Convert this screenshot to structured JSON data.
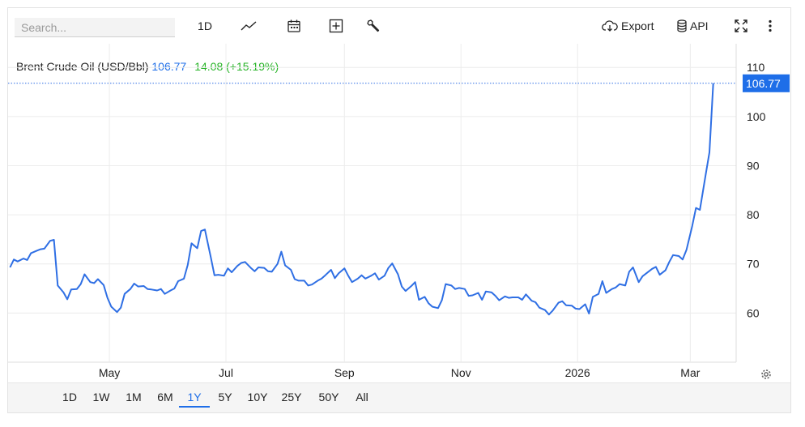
{
  "toolbar": {
    "search_placeholder": "Search...",
    "interval_label": "1D",
    "export_label": "Export",
    "api_label": "API",
    "icons": [
      "line-chart-icon",
      "calendar-icon",
      "add-indicator-icon",
      "wrench-icon",
      "cloud-download-icon",
      "database-icon",
      "fullscreen-icon",
      "more-vertical-icon"
    ]
  },
  "info": {
    "title": "Brent Crude Oil (USD/Bbl)",
    "last": "106.77",
    "change": "14.08 (+15.19%)"
  },
  "ranges": [
    "1D",
    "1W",
    "1M",
    "6M",
    "1Y",
    "5Y",
    "10Y",
    "25Y",
    "50Y",
    "All"
  ],
  "active_range": "1Y",
  "colors": {
    "line": "#2f6fe4",
    "positive": "#28b428",
    "accent": "#1e6ee8",
    "grid": "#ececec"
  },
  "chart_data": {
    "type": "line",
    "title": "Brent Crude Oil (USD/Bbl)",
    "xlabel": "",
    "ylabel": "",
    "ylim": [
      50,
      113.5
    ],
    "yticks": [
      60,
      70,
      80,
      90,
      100,
      110
    ],
    "xticks": [
      {
        "label": "May",
        "x": "2025-05-01"
      },
      {
        "label": "Jul",
        "x": "2025-07-01"
      },
      {
        "label": "Sep",
        "x": "2025-09-01"
      },
      {
        "label": "Nov",
        "x": "2025-11-01"
      },
      {
        "label": "2026",
        "x": "2026-01-01"
      },
      {
        "label": "Mar",
        "x": "2026-03-01"
      }
    ],
    "xrange": [
      "2025-03-09",
      "2026-03-25"
    ],
    "last_value_label": "106.77",
    "last_value": 106.77,
    "grid": true,
    "series": [
      {
        "name": "",
        "points": [
          [
            "2025-03-10",
            69.3
          ],
          [
            "2025-03-12",
            70.9
          ],
          [
            "2025-03-14",
            70.5
          ],
          [
            "2025-03-17",
            71.1
          ],
          [
            "2025-03-19",
            70.8
          ],
          [
            "2025-03-21",
            72.2
          ],
          [
            "2025-03-24",
            72.7
          ],
          [
            "2025-03-26",
            73.0
          ],
          [
            "2025-03-28",
            73.1
          ],
          [
            "2025-03-31",
            74.7
          ],
          [
            "2025-04-02",
            74.9
          ],
          [
            "2025-04-04",
            65.6
          ],
          [
            "2025-04-07",
            64.2
          ],
          [
            "2025-04-09",
            62.8
          ],
          [
            "2025-04-11",
            64.8
          ],
          [
            "2025-04-14",
            64.9
          ],
          [
            "2025-04-16",
            65.9
          ],
          [
            "2025-04-18",
            67.9
          ],
          [
            "2025-04-21",
            66.3
          ],
          [
            "2025-04-23",
            66.1
          ],
          [
            "2025-04-25",
            66.9
          ],
          [
            "2025-04-28",
            65.7
          ],
          [
            "2025-04-30",
            63.1
          ],
          [
            "2025-05-02",
            61.3
          ],
          [
            "2025-05-05",
            60.2
          ],
          [
            "2025-05-07",
            61.1
          ],
          [
            "2025-05-09",
            63.9
          ],
          [
            "2025-05-12",
            64.9
          ],
          [
            "2025-05-14",
            66.0
          ],
          [
            "2025-05-16",
            65.4
          ],
          [
            "2025-05-19",
            65.5
          ],
          [
            "2025-05-21",
            64.9
          ],
          [
            "2025-05-23",
            64.8
          ],
          [
            "2025-05-26",
            64.6
          ],
          [
            "2025-05-28",
            64.9
          ],
          [
            "2025-05-30",
            63.9
          ],
          [
            "2025-06-02",
            64.6
          ],
          [
            "2025-06-04",
            65.0
          ],
          [
            "2025-06-06",
            66.5
          ],
          [
            "2025-06-09",
            67.0
          ],
          [
            "2025-06-11",
            69.8
          ],
          [
            "2025-06-13",
            74.2
          ],
          [
            "2025-06-16",
            73.2
          ],
          [
            "2025-06-18",
            76.7
          ],
          [
            "2025-06-20",
            77.0
          ],
          [
            "2025-06-23",
            71.5
          ],
          [
            "2025-06-25",
            67.7
          ],
          [
            "2025-06-27",
            67.8
          ],
          [
            "2025-06-30",
            67.6
          ],
          [
            "2025-07-02",
            69.1
          ],
          [
            "2025-07-04",
            68.3
          ],
          [
            "2025-07-07",
            69.6
          ],
          [
            "2025-07-09",
            70.2
          ],
          [
            "2025-07-11",
            70.4
          ],
          [
            "2025-07-14",
            69.2
          ],
          [
            "2025-07-16",
            68.5
          ],
          [
            "2025-07-18",
            69.3
          ],
          [
            "2025-07-21",
            69.2
          ],
          [
            "2025-07-23",
            68.5
          ],
          [
            "2025-07-25",
            68.4
          ],
          [
            "2025-07-28",
            70.0
          ],
          [
            "2025-07-30",
            72.5
          ],
          [
            "2025-08-01",
            69.7
          ],
          [
            "2025-08-04",
            68.8
          ],
          [
            "2025-08-06",
            66.9
          ],
          [
            "2025-08-08",
            66.6
          ],
          [
            "2025-08-11",
            66.6
          ],
          [
            "2025-08-13",
            65.6
          ],
          [
            "2025-08-15",
            65.8
          ],
          [
            "2025-08-18",
            66.6
          ],
          [
            "2025-08-20",
            67.0
          ],
          [
            "2025-08-22",
            67.7
          ],
          [
            "2025-08-25",
            68.8
          ],
          [
            "2025-08-27",
            67.1
          ],
          [
            "2025-08-29",
            68.1
          ],
          [
            "2025-09-01",
            69.1
          ],
          [
            "2025-09-03",
            67.6
          ],
          [
            "2025-09-05",
            66.3
          ],
          [
            "2025-09-08",
            67.0
          ],
          [
            "2025-09-10",
            67.7
          ],
          [
            "2025-09-12",
            67.0
          ],
          [
            "2025-09-15",
            67.6
          ],
          [
            "2025-09-17",
            68.1
          ],
          [
            "2025-09-19",
            66.8
          ],
          [
            "2025-09-22",
            67.6
          ],
          [
            "2025-09-24",
            69.2
          ],
          [
            "2025-09-26",
            70.1
          ],
          [
            "2025-09-29",
            67.9
          ],
          [
            "2025-10-01",
            65.4
          ],
          [
            "2025-10-03",
            64.5
          ],
          [
            "2025-10-06",
            65.5
          ],
          [
            "2025-10-08",
            66.3
          ],
          [
            "2025-10-10",
            62.7
          ],
          [
            "2025-10-13",
            63.3
          ],
          [
            "2025-10-15",
            62.0
          ],
          [
            "2025-10-17",
            61.3
          ],
          [
            "2025-10-20",
            61.0
          ],
          [
            "2025-10-22",
            62.6
          ],
          [
            "2025-10-24",
            65.9
          ],
          [
            "2025-10-27",
            65.6
          ],
          [
            "2025-10-29",
            64.9
          ],
          [
            "2025-10-31",
            65.1
          ],
          [
            "2025-11-03",
            64.9
          ],
          [
            "2025-11-05",
            63.5
          ],
          [
            "2025-11-07",
            63.6
          ],
          [
            "2025-11-10",
            64.1
          ],
          [
            "2025-11-12",
            62.7
          ],
          [
            "2025-11-14",
            64.4
          ],
          [
            "2025-11-17",
            64.2
          ],
          [
            "2025-11-19",
            63.5
          ],
          [
            "2025-11-21",
            62.6
          ],
          [
            "2025-11-24",
            63.4
          ],
          [
            "2025-11-26",
            63.1
          ],
          [
            "2025-11-28",
            63.2
          ],
          [
            "2025-12-01",
            63.2
          ],
          [
            "2025-12-03",
            62.7
          ],
          [
            "2025-12-05",
            63.8
          ],
          [
            "2025-12-08",
            62.5
          ],
          [
            "2025-12-10",
            62.2
          ],
          [
            "2025-12-12",
            61.1
          ],
          [
            "2025-12-15",
            60.6
          ],
          [
            "2025-12-17",
            59.7
          ],
          [
            "2025-12-19",
            60.5
          ],
          [
            "2025-12-22",
            62.1
          ],
          [
            "2025-12-24",
            62.4
          ],
          [
            "2025-12-26",
            61.6
          ],
          [
            "2025-12-29",
            61.5
          ],
          [
            "2025-12-31",
            60.9
          ],
          [
            "2026-01-02",
            60.8
          ],
          [
            "2026-01-05",
            61.8
          ],
          [
            "2026-01-07",
            59.9
          ],
          [
            "2026-01-09",
            63.3
          ],
          [
            "2026-01-12",
            63.9
          ],
          [
            "2026-01-14",
            66.5
          ],
          [
            "2026-01-16",
            64.1
          ],
          [
            "2026-01-19",
            64.9
          ],
          [
            "2026-01-21",
            65.2
          ],
          [
            "2026-01-23",
            65.9
          ],
          [
            "2026-01-26",
            65.6
          ],
          [
            "2026-01-28",
            68.4
          ],
          [
            "2026-01-30",
            69.3
          ],
          [
            "2026-02-02",
            66.3
          ],
          [
            "2026-02-04",
            67.5
          ],
          [
            "2026-02-06",
            68.1
          ],
          [
            "2026-02-09",
            69.0
          ],
          [
            "2026-02-11",
            69.4
          ],
          [
            "2026-02-13",
            67.8
          ],
          [
            "2026-02-16",
            68.7
          ],
          [
            "2026-02-18",
            70.4
          ],
          [
            "2026-02-20",
            71.8
          ],
          [
            "2026-02-23",
            71.6
          ],
          [
            "2026-02-25",
            70.9
          ],
          [
            "2026-02-27",
            72.9
          ],
          [
            "2026-03-02",
            77.7
          ],
          [
            "2026-03-04",
            81.4
          ],
          [
            "2026-03-06",
            81.0
          ],
          [
            "2026-03-09",
            88.0
          ],
          [
            "2026-03-11",
            92.7
          ],
          [
            "2026-03-13",
            106.77
          ]
        ]
      }
    ]
  }
}
